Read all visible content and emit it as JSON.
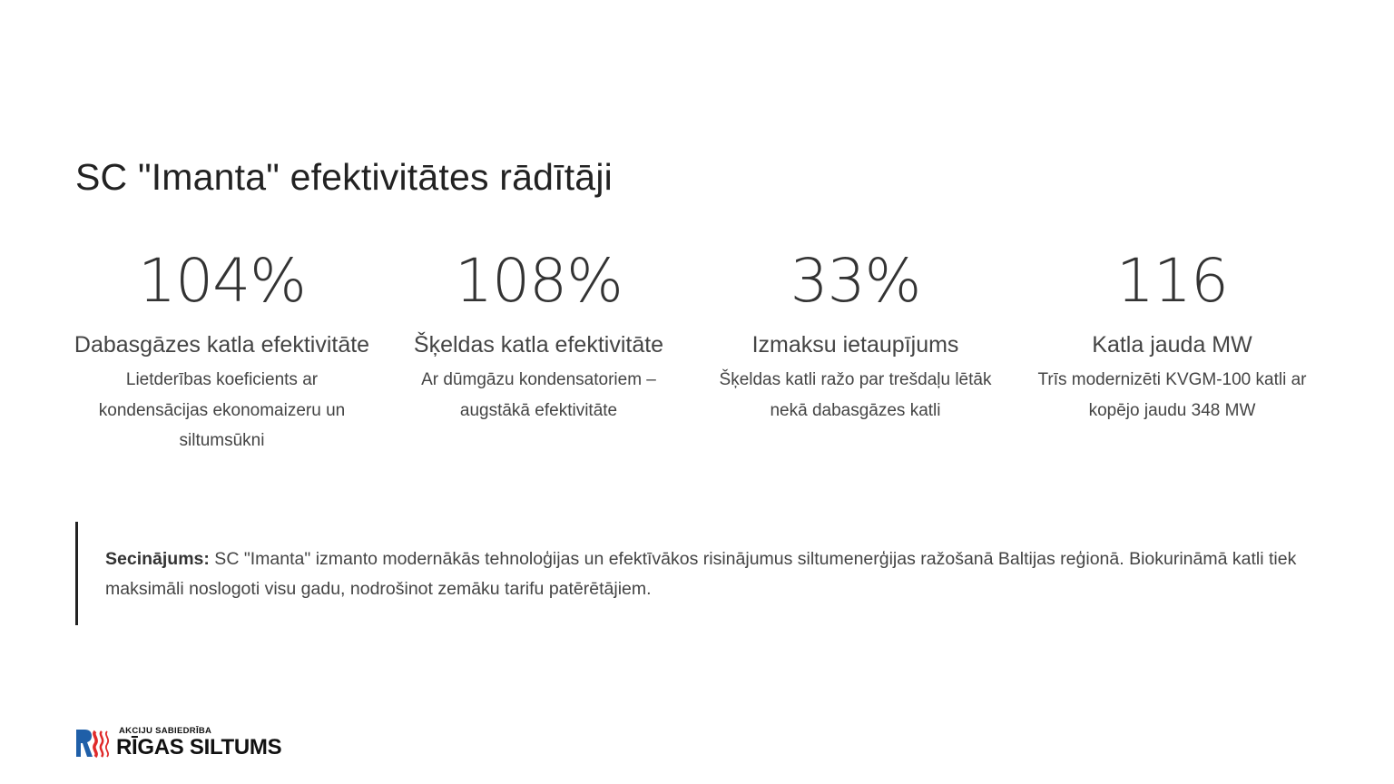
{
  "title": "SC \"Imanta\" efektivitātes rādītāji",
  "stats": [
    {
      "value": "104%",
      "label": "Dabasgāzes katla efektivitāte",
      "description": "Lietderības koeficients ar kondensācijas ekonomaizeru un siltumsūkni"
    },
    {
      "value": "108%",
      "label": "Šķeldas katla efektivitāte",
      "description": "Ar dūmgāzu kondensatoriem – augstākā efektivitāte"
    },
    {
      "value": "33%",
      "label": "Izmaksu ietaupījums",
      "description": "Šķeldas katli ražo par trešdaļu lētāk nekā dabasgāzes katli"
    },
    {
      "value": "116",
      "label": "Katla jauda MW",
      "description": "Trīs modernizēti KVGM-100 katli ar kopējo jaudu 348 MW"
    }
  ],
  "conclusion": {
    "lead": "Secinājums:",
    "text": " SC \"Imanta\" izmanto modernākās tehnoloģijas un efektīvākos risinājumus siltumenerģijas ražošanā Baltijas reģionā. Biokurināmā katli tiek maksimāli noslogoti visu gadu, nodrošinot zemāku tarifu patērētājiem."
  },
  "logo": {
    "small": "AKCIJU SABIEDRĪBA",
    "big": "RĪGAS SILTUMS",
    "colors": {
      "blue": "#1f5fa8",
      "red": "#e02a2a"
    }
  }
}
